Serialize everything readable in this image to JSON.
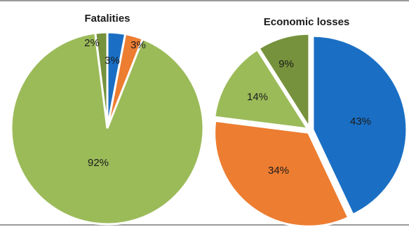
{
  "chart_data": [
    {
      "type": "pie",
      "title": "Fatalities",
      "slices": [
        {
          "label": "3%",
          "value": 3,
          "color": "#1a6fc4"
        },
        {
          "label": "3%",
          "value": 3,
          "color": "#ed7d31"
        },
        {
          "label": "92%",
          "value": 92,
          "color": "#9bbb59"
        },
        {
          "label": "2%",
          "value": 2,
          "color": "#76923c"
        }
      ]
    },
    {
      "type": "pie",
      "title": "Economic losses",
      "slices": [
        {
          "label": "43%",
          "value": 43,
          "color": "#1a6fc4"
        },
        {
          "label": "34%",
          "value": 34,
          "color": "#ed7d31"
        },
        {
          "label": "14%",
          "value": 14,
          "color": "#9bbb59"
        },
        {
          "label": "9%",
          "value": 9,
          "color": "#76923c"
        }
      ]
    }
  ]
}
